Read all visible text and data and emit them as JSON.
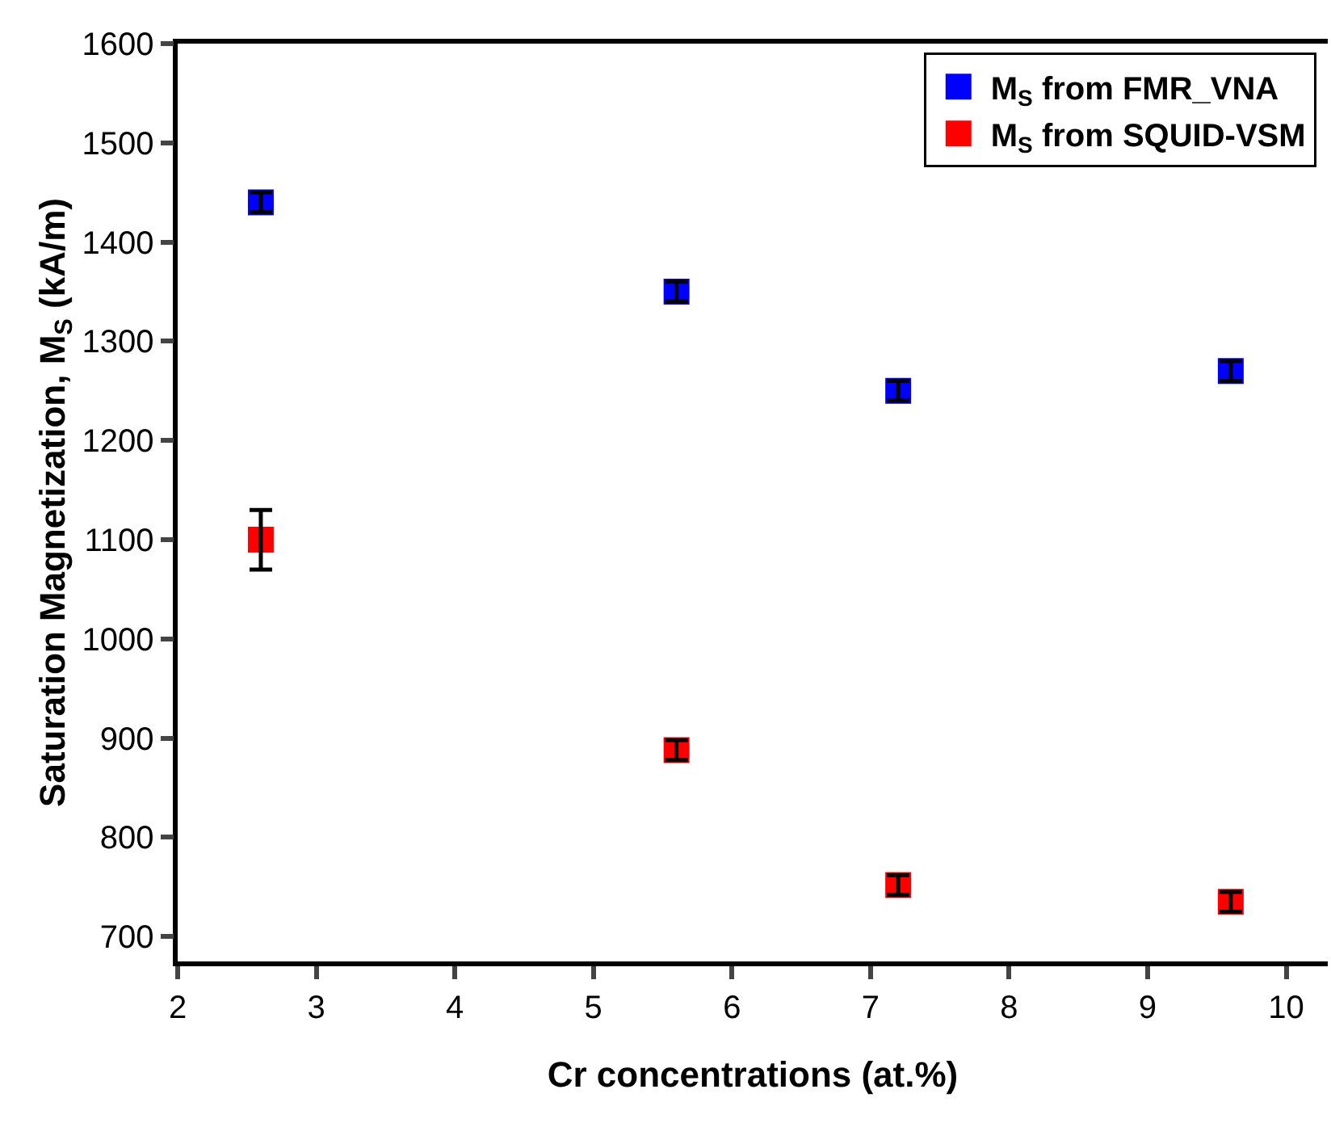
{
  "chart_data": {
    "type": "scatter",
    "xlabel": "Cr concentrations (at.%)",
    "ylabel": "Saturation Magnetization, M$_{S}$ (kA/m)",
    "x": [
      2.6,
      5.6,
      7.2,
      9.6
    ],
    "series": [
      {
        "name": "M$_{S}$ from FMR_VNA",
        "color": "#0000ff",
        "values": [
          1440,
          1350,
          1250,
          1270
        ],
        "errors": [
          10,
          10,
          10,
          10
        ]
      },
      {
        "name": "M$_{S}$ from SQUID-VSM",
        "color": "#ff0000",
        "values": [
          1100,
          888,
          752,
          735
        ],
        "errors": [
          30,
          10,
          10,
          10
        ]
      }
    ],
    "xlim": [
      2,
      10.3
    ],
    "xticks": [
      2,
      3,
      4,
      5,
      6,
      7,
      8,
      9,
      10
    ],
    "ylim": [
      675,
      1600
    ],
    "yticks": [
      700,
      800,
      900,
      1000,
      1100,
      1200,
      1300,
      1400,
      1500,
      1600
    ],
    "grid": false,
    "legend": "top right",
    "marker": "square"
  }
}
